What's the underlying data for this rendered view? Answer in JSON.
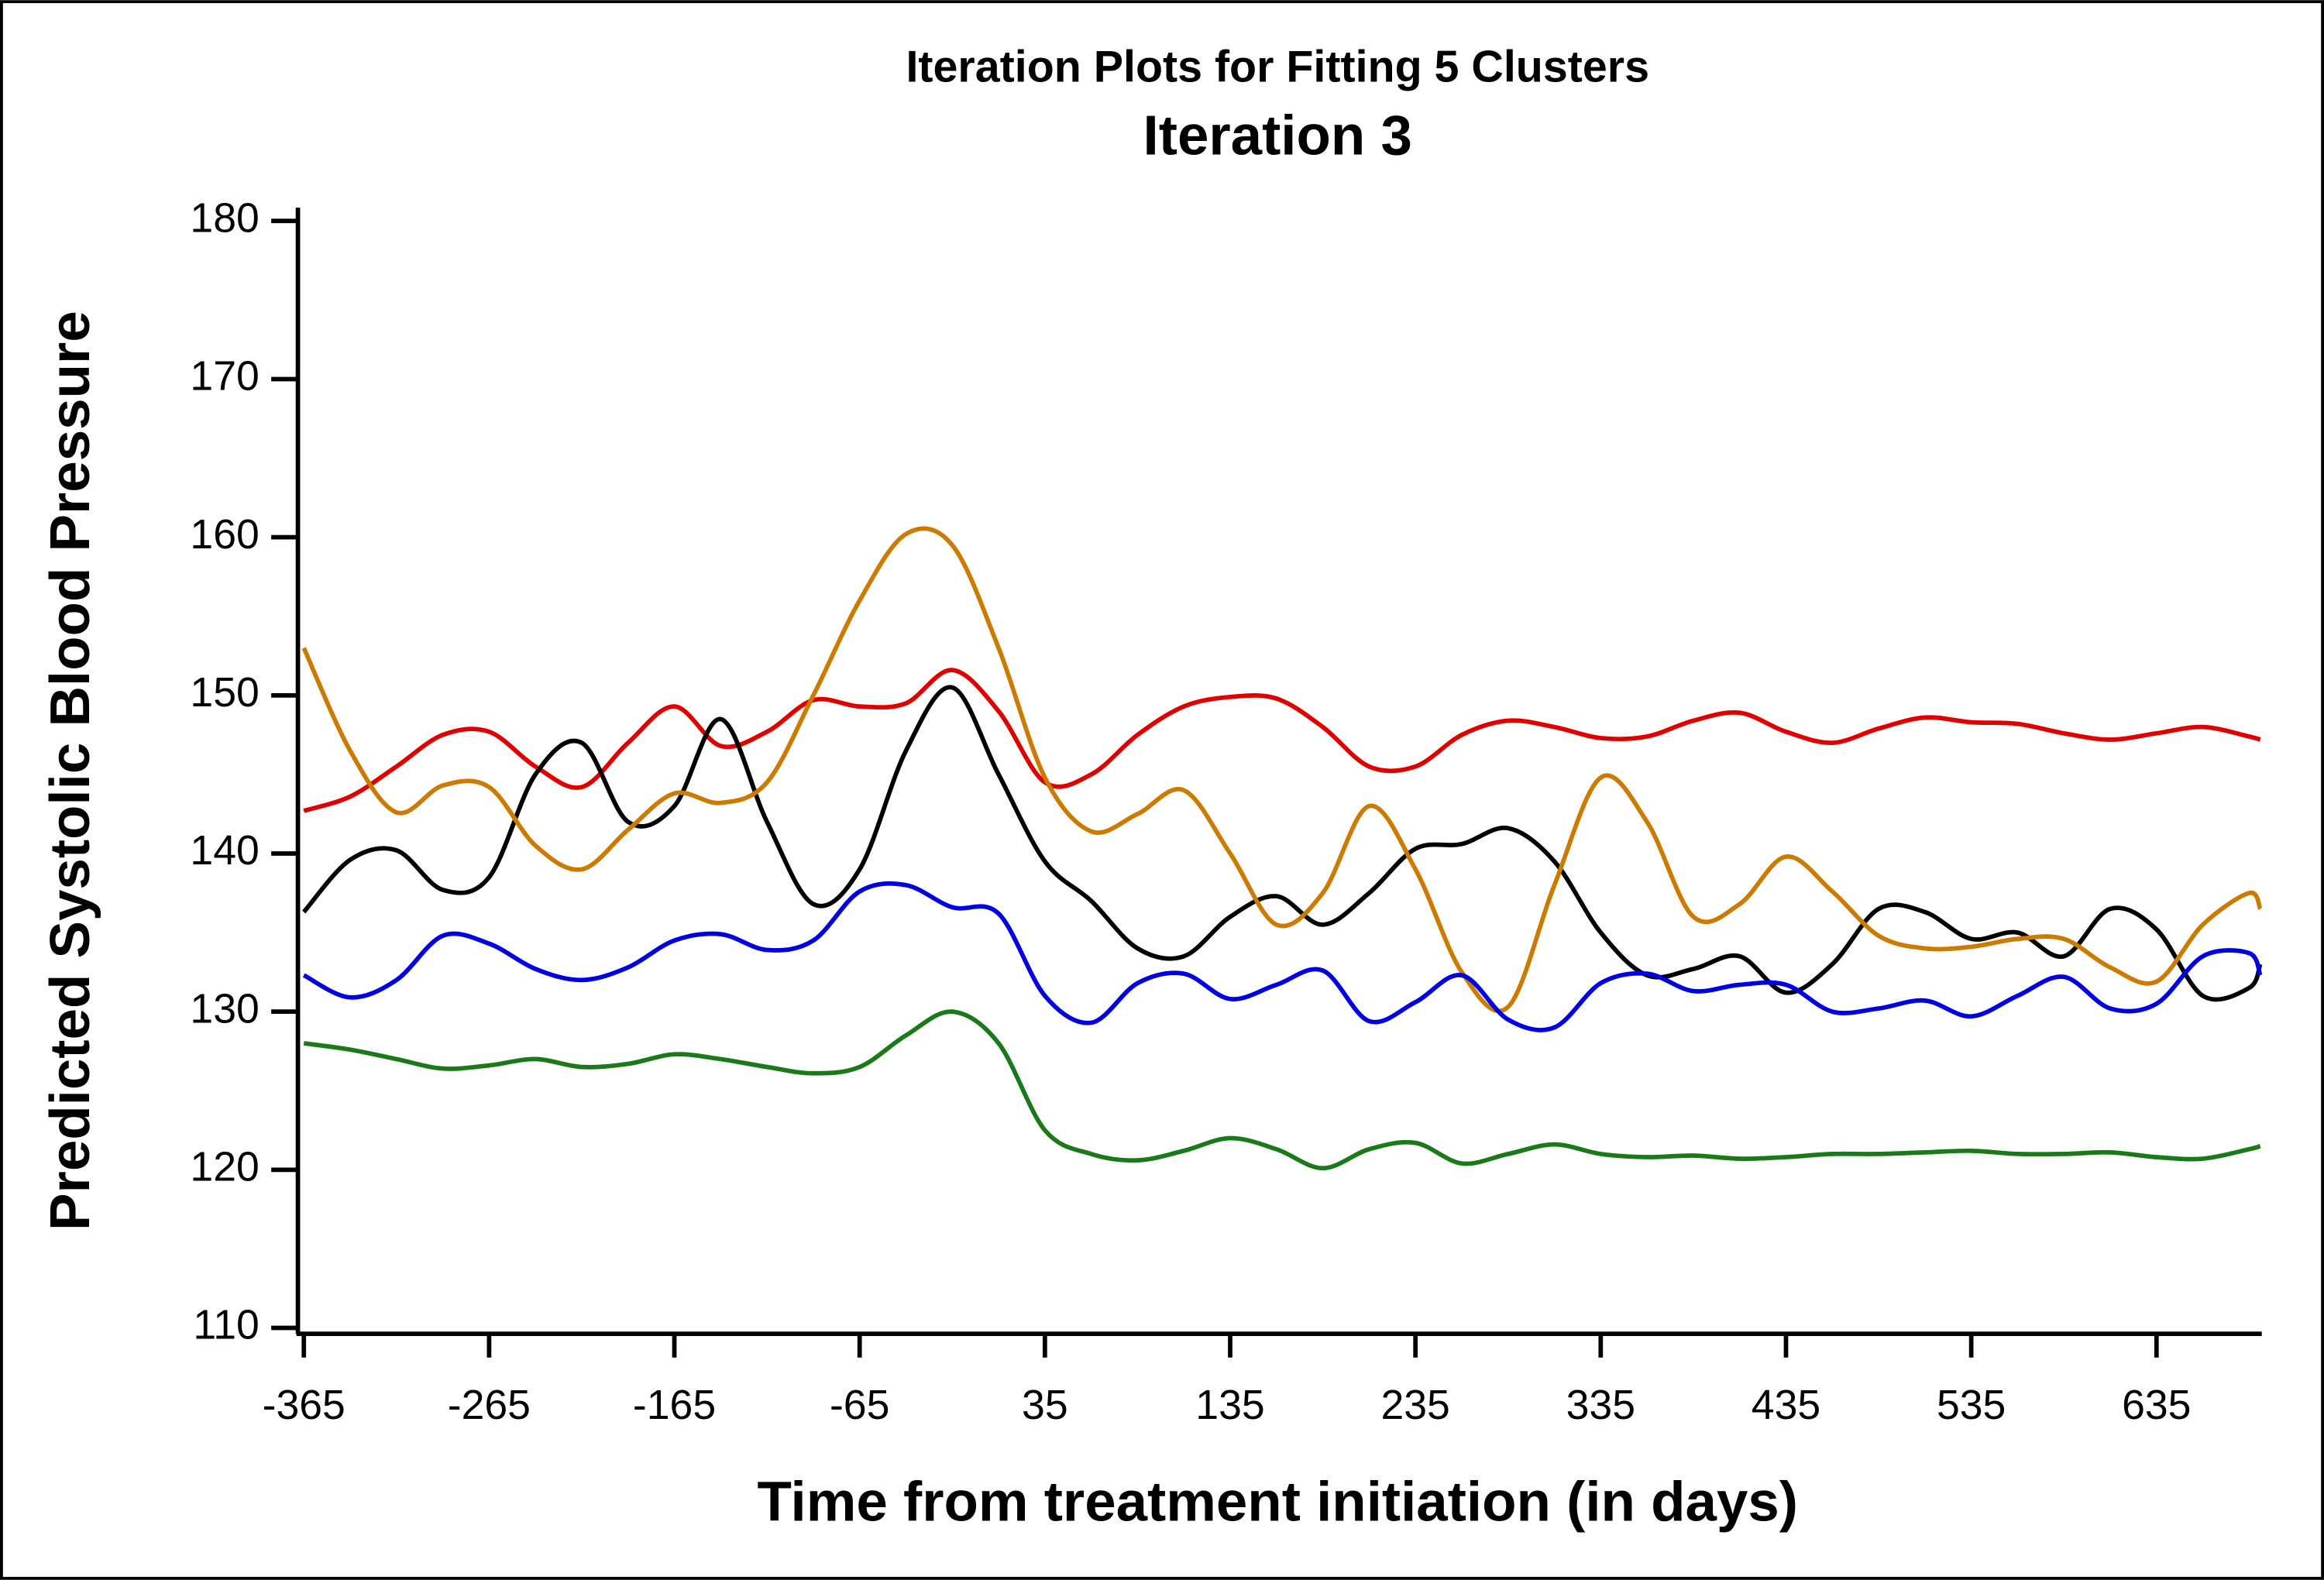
{
  "chart_data": {
    "type": "line",
    "title": "Iteration Plots for Fitting 5 Clusters",
    "subtitle": "Iteration 3",
    "x_label": "Time from treatment initiation (in days)",
    "y_label": "Predicted Systolic Blood Pressure",
    "x": [
      -365,
      -340,
      -315,
      -290,
      -265,
      -240,
      -215,
      -190,
      -165,
      -140,
      -115,
      -90,
      -65,
      -40,
      -15,
      10,
      35,
      60,
      85,
      110,
      135,
      160,
      185,
      210,
      235,
      260,
      285,
      310,
      335,
      360,
      385,
      410,
      435,
      460,
      485,
      510,
      535,
      560,
      585,
      610,
      635,
      660,
      685,
      691
    ],
    "series": [
      {
        "color": "#e00000",
        "values": [
          142.7,
          143.6,
          145.5,
          147.5,
          147.7,
          145.5,
          144.2,
          147,
          149.3,
          146.8,
          147.7,
          149.7,
          149.3,
          149.5,
          151.6,
          149,
          144.5,
          145,
          147.5,
          149.3,
          149.9,
          149.8,
          148,
          145.5,
          145.5,
          147.5,
          148.4,
          148,
          147.3,
          147.4,
          148.4,
          148.9,
          147.7,
          147,
          147.9,
          148.6,
          148.3,
          148.2,
          147.6,
          147.2,
          147.6,
          148,
          147.4,
          147.2
        ]
      },
      {
        "color": "#000000",
        "values": [
          136.3,
          139.6,
          140.2,
          137.7,
          138.5,
          145,
          147,
          142,
          143,
          148.5,
          142,
          136.8,
          139,
          146.5,
          150.5,
          145,
          139.5,
          137,
          134,
          133.5,
          136,
          137.3,
          135.5,
          137.5,
          140.3,
          140.6,
          141.6,
          139.5,
          135,
          132.3,
          132.7,
          133.5,
          131.2,
          133,
          136.5,
          136.3,
          134.6,
          135,
          133.5,
          136.5,
          135.2,
          131,
          131.5,
          133
        ]
      },
      {
        "color": "#cc7a00",
        "values": [
          153,
          146.5,
          142.6,
          144.3,
          144.2,
          140.5,
          139,
          141.5,
          143.8,
          143.2,
          144.5,
          150,
          156,
          160.2,
          159.5,
          153,
          144.8,
          141.4,
          142.5,
          144,
          140,
          135.5,
          137.5,
          143,
          139,
          132.5,
          130.3,
          138,
          144.8,
          142,
          136,
          136.8,
          139.8,
          137.6,
          134.8,
          134,
          134.1,
          134.6,
          134.6,
          132.8,
          131.9,
          135.5,
          137.5,
          136.5
        ]
      },
      {
        "color": "#0000e0",
        "values": [
          132.3,
          130.9,
          132,
          134.8,
          134.3,
          132.7,
          132,
          132.8,
          134.5,
          134.9,
          133.9,
          134.5,
          137.6,
          138,
          136.6,
          136.2,
          131,
          129.3,
          131.8,
          132.4,
          130.8,
          131.7,
          132.6,
          129.4,
          130.6,
          132.3,
          129.5,
          129,
          131.8,
          132.4,
          131.3,
          131.7,
          131.7,
          130,
          130.2,
          130.7,
          129.7,
          131,
          132.2,
          130.2,
          130.5,
          133.5,
          133.7,
          132.3
        ]
      },
      {
        "color": "#1a7a1a",
        "values": [
          128,
          127.6,
          127,
          126.4,
          126.6,
          127,
          126.5,
          126.7,
          127.3,
          127,
          126.5,
          126.1,
          126.5,
          128.5,
          130,
          128,
          122.5,
          121,
          120.6,
          121.2,
          122,
          121.3,
          120.1,
          121.3,
          121.7,
          120.4,
          121,
          121.6,
          121,
          120.8,
          120.9,
          120.7,
          120.8,
          121,
          121,
          121.1,
          121.2,
          121,
          121,
          121.1,
          120.8,
          120.7,
          121.3,
          121.5
        ]
      }
    ],
    "xlim": [
      -365,
      691
    ],
    "ylim": [
      110,
      180
    ],
    "xticks": [
      -365,
      -265,
      -165,
      -65,
      35,
      135,
      235,
      335,
      435,
      535,
      635
    ],
    "yticks": [
      110,
      120,
      130,
      140,
      150,
      160,
      170,
      180
    ]
  }
}
